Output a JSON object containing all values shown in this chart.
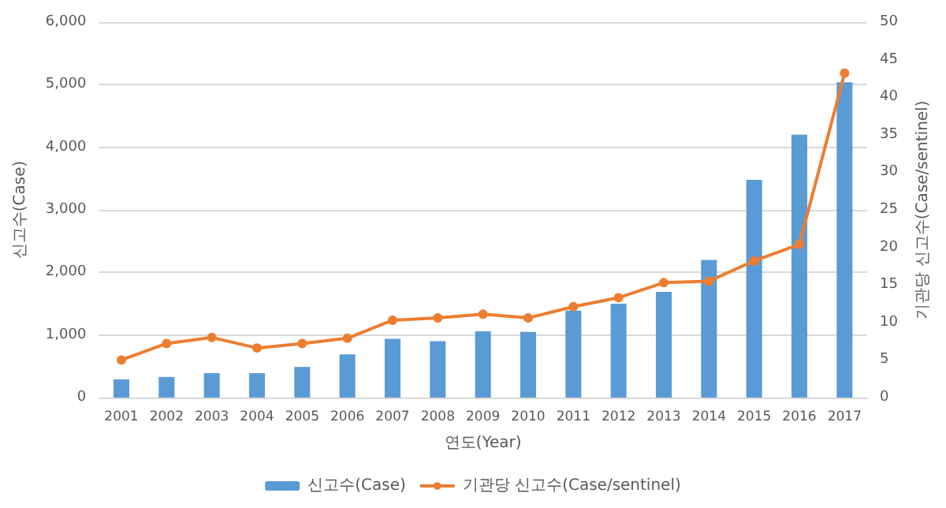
{
  "chart_data": {
    "type": "bar",
    "xlabel": "연도(Year)",
    "ylabel": "신고수(Case)",
    "y2label": "기관당 신고수(Case/sentinel)",
    "categories": [
      "2001",
      "2002",
      "2003",
      "2004",
      "2005",
      "2006",
      "2007",
      "2008",
      "2009",
      "2010",
      "2011",
      "2012",
      "2013",
      "2014",
      "2015",
      "2016",
      "2017"
    ],
    "series": [
      {
        "name": "신고수(Case)",
        "color": "#5b9bd5",
        "values": [
          290,
          330,
          390,
          390,
          490,
          690,
          940,
          900,
          1060,
          1050,
          1390,
          1500,
          1690,
          2200,
          3480,
          4200,
          5040
        ]
      },
      {
        "name": "기관당 신고수(Case/sentinel)",
        "type": "line",
        "axis": "y2",
        "color": "#ed7d31",
        "marker": "circle",
        "values": [
          5.0,
          7.2,
          8.0,
          6.6,
          7.2,
          7.9,
          10.3,
          10.6,
          11.1,
          10.6,
          12.1,
          13.3,
          15.3,
          15.5,
          18.2,
          20.4,
          43.2
        ]
      }
    ],
    "ylim": [
      0,
      6000
    ],
    "yticks": [
      0,
      {
        "value": 1000,
        "label": "1,000"
      },
      {
        "value": 2000,
        "label": "2,000"
      },
      {
        "value": 3000,
        "label": "3,000"
      },
      {
        "value": 4000,
        "label": "4,000"
      },
      {
        "value": 5000,
        "label": "5,000"
      },
      {
        "value": 6000,
        "label": "6,000"
      }
    ],
    "y2lim": [
      0,
      50
    ],
    "y2ticks": [
      0,
      5,
      10,
      15,
      20,
      25,
      30,
      35,
      40,
      45,
      50
    ],
    "grid": "y",
    "legend": "bottom"
  }
}
